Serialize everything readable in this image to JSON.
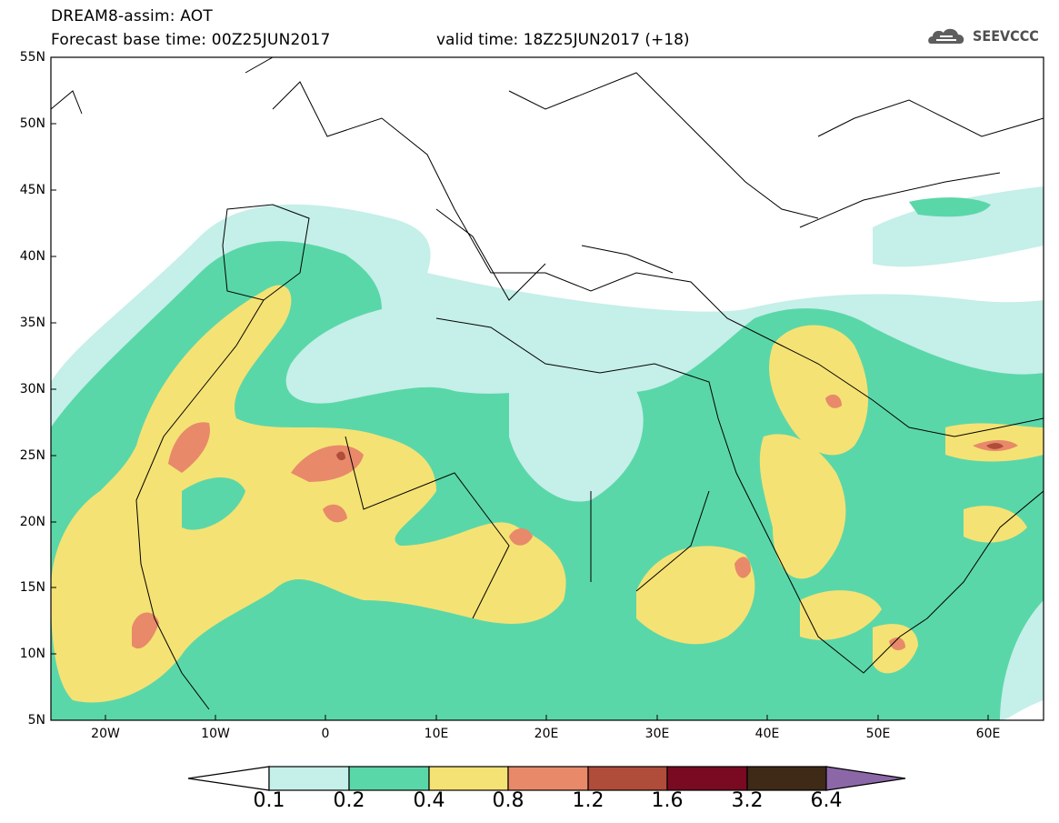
{
  "header": {
    "title": "DREAM8-assim: AOT",
    "base_time": "Forecast base time: 00Z25JUN2017",
    "valid_time": "valid time: 18Z25JUN2017 (+18)",
    "logo": "SEEVCCC"
  },
  "axes": {
    "lat_labels": [
      "55N",
      "50N",
      "45N",
      "40N",
      "35N",
      "30N",
      "25N",
      "20N",
      "15N",
      "10N",
      "5N"
    ],
    "lon_labels": [
      "20W",
      "10W",
      "0",
      "10E",
      "20E",
      "30E",
      "40E",
      "50E",
      "60E"
    ],
    "lon_range": [
      -25,
      65
    ],
    "lat_range": [
      5,
      55
    ]
  },
  "legend": {
    "labels": [
      "0.1",
      "0.2",
      "0.4",
      "0.8",
      "1.2",
      "1.6",
      "3.2",
      "6.4"
    ],
    "colors": [
      "#ffffff",
      "#c5efe9",
      "#5ad7a8",
      "#f5e274",
      "#e8896a",
      "#b04c3a",
      "#7a0a22",
      "#3e2a17",
      "#8c67a8"
    ]
  },
  "icons": {
    "logo": "cloud-icon"
  }
}
